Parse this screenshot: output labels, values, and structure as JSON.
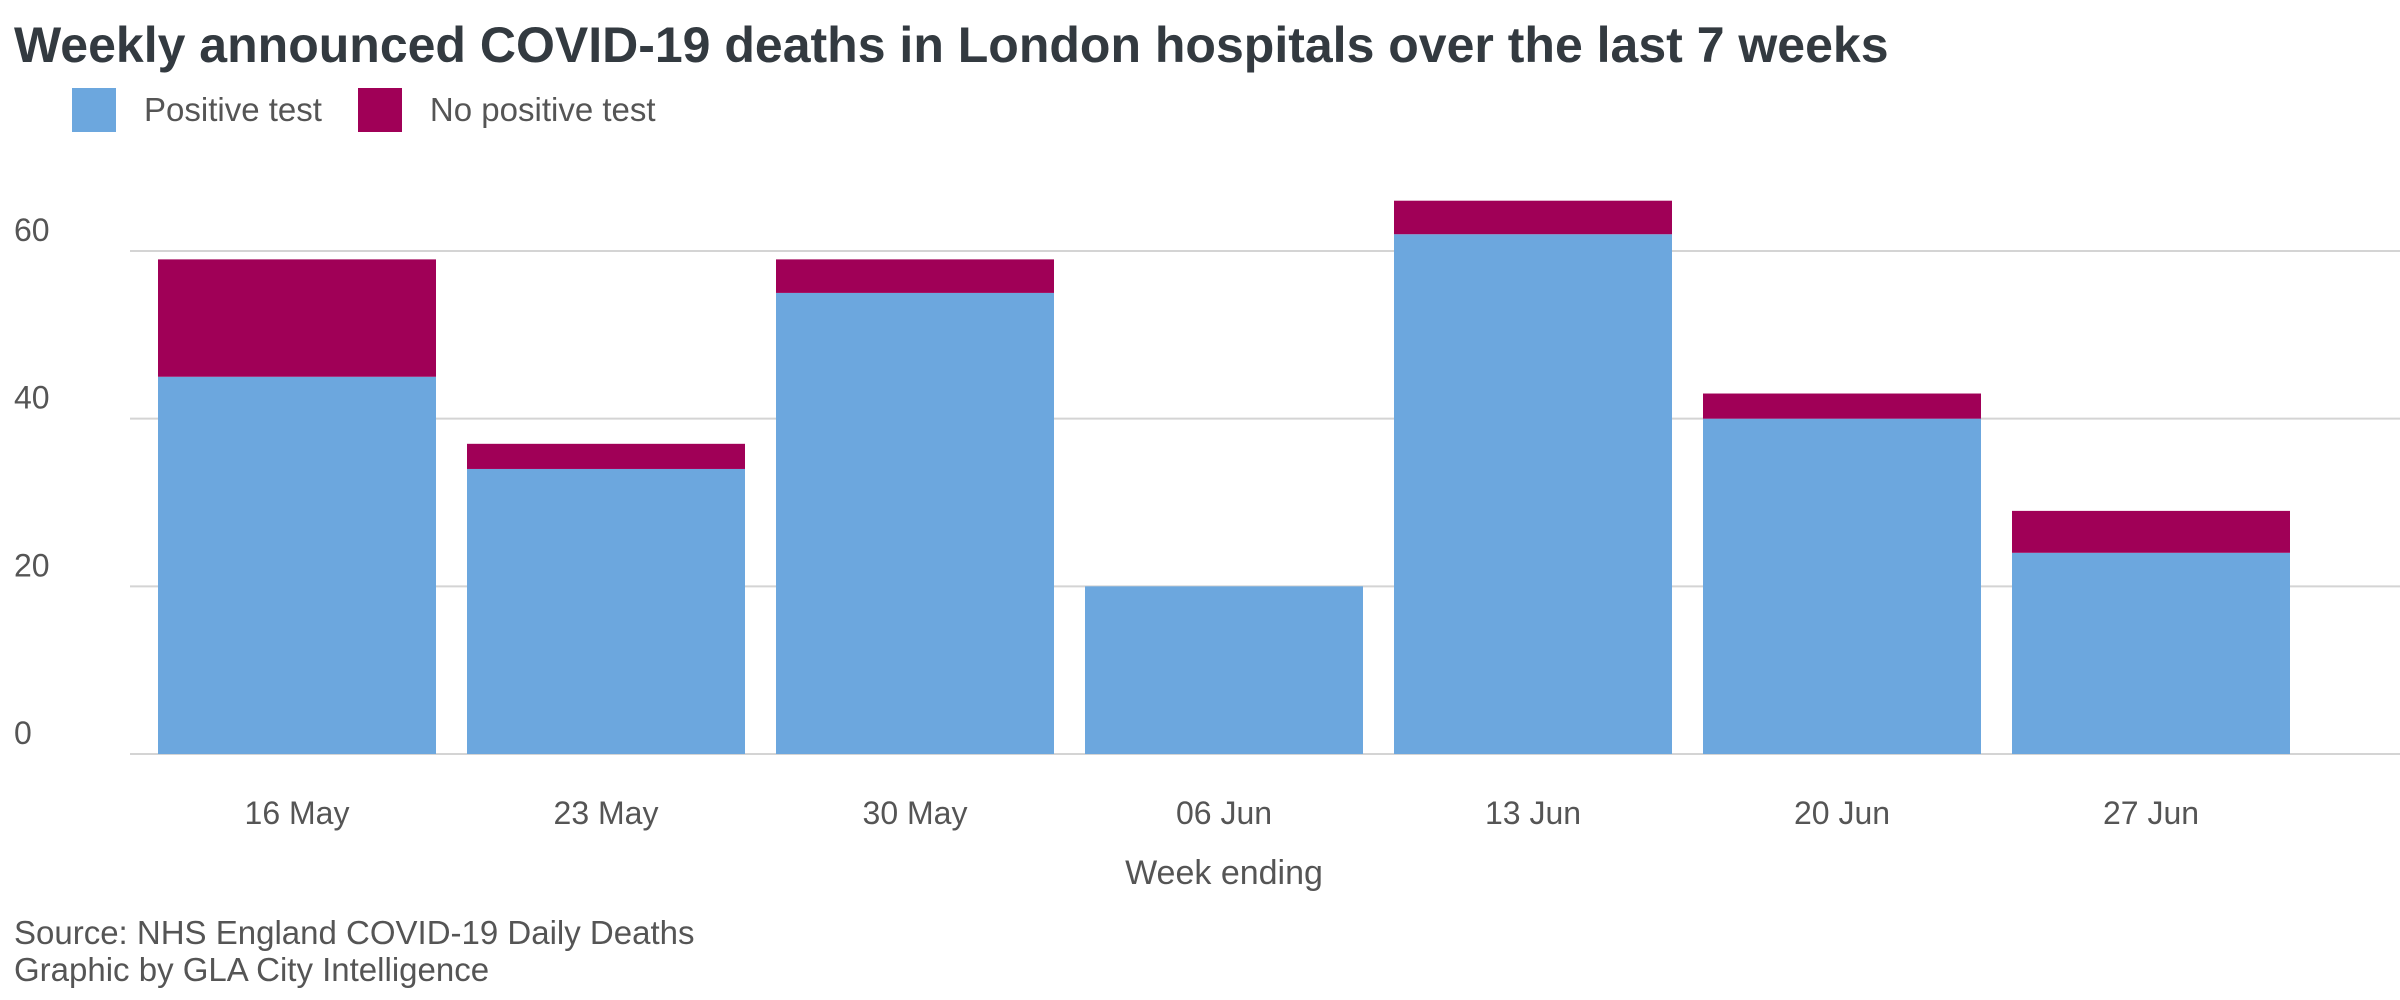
{
  "chart_data": {
    "type": "bar",
    "stacked": true,
    "title": "Weekly announced COVID-19 deaths in London hospitals over the last 7 weeks",
    "xlabel": "Week ending",
    "ylabel": "",
    "ylim": [
      0,
      70
    ],
    "yticks": [
      0,
      20,
      40,
      60
    ],
    "grid": true,
    "legend_position": "top-left",
    "categories": [
      "16 May",
      "23 May",
      "30 May",
      "06 Jun",
      "13 Jun",
      "20 Jun",
      "27 Jun"
    ],
    "series": [
      {
        "name": "Positive test",
        "color": "#6ca7de",
        "values": [
          45,
          34,
          55,
          20,
          62,
          40,
          24
        ]
      },
      {
        "name": "No positive test",
        "color": "#a00057",
        "values": [
          14,
          3,
          4,
          0,
          4,
          3,
          5
        ]
      }
    ]
  },
  "footer": {
    "source": "Source: NHS England COVID-19 Daily Deaths",
    "credit": "Graphic by GLA City Intelligence"
  }
}
